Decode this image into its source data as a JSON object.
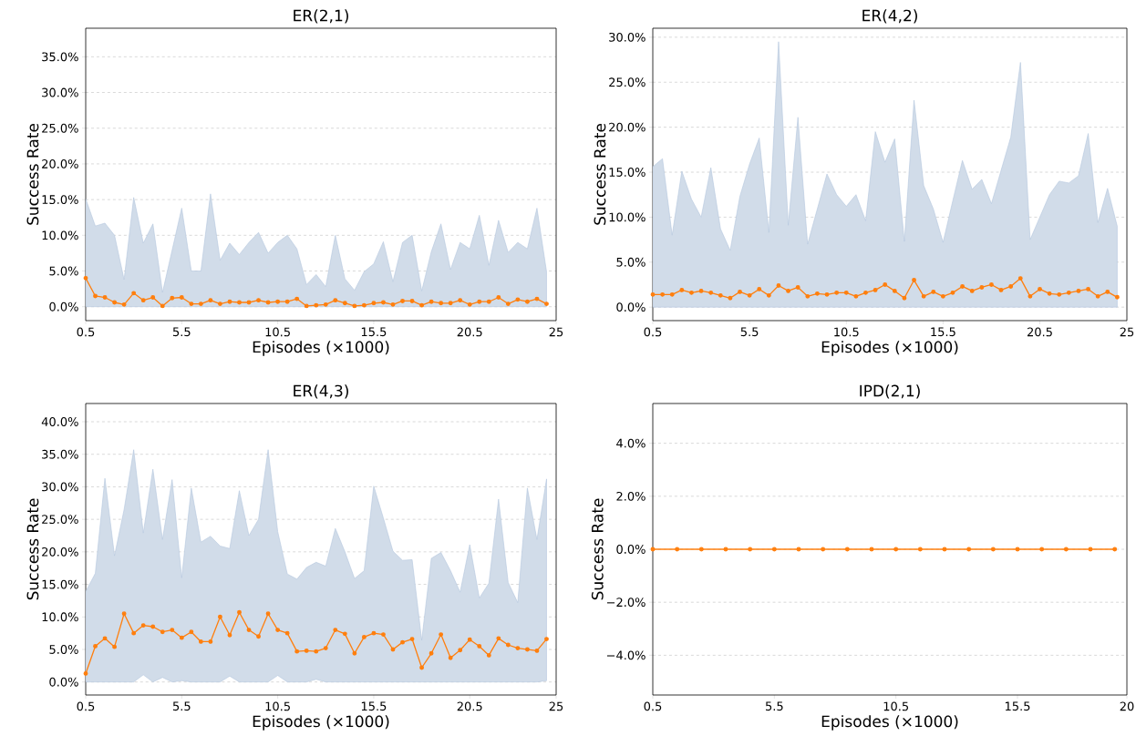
{
  "chart_data": [
    {
      "type": "line",
      "title": "ER(2,1)",
      "xlabel": "Episodes (×1000)",
      "ylabel": "Success Rate",
      "grid": "y",
      "marker": "circle",
      "line_style": "solid",
      "xlim": [
        0.5,
        25
      ],
      "xticks": [
        0.5,
        5.5,
        10.5,
        15.5,
        20.5,
        25
      ],
      "ylim": [
        -1.95,
        39
      ],
      "yticks": [
        {
          "value": 0,
          "label": "0.0%"
        },
        {
          "value": 5,
          "label": "5.0%"
        },
        {
          "value": 10,
          "label": "10.0%"
        },
        {
          "value": 15,
          "label": "15.0%"
        },
        {
          "value": 20,
          "label": "20.0%"
        },
        {
          "value": 25,
          "label": "25.0%"
        },
        {
          "value": 30,
          "label": "30.0%"
        },
        {
          "value": 35,
          "label": "35.0%"
        }
      ],
      "x": [
        0.5,
        1,
        1.5,
        2,
        2.5,
        3,
        3.5,
        4,
        4.5,
        5,
        5.5,
        6,
        6.5,
        7,
        7.5,
        8,
        8.5,
        9,
        9.5,
        10,
        10.5,
        11,
        11.5,
        12,
        12.5,
        13,
        13.5,
        14,
        14.5,
        15,
        15.5,
        16,
        16.5,
        17,
        17.5,
        18,
        18.5,
        19,
        19.5,
        20,
        20.5,
        21,
        21.5,
        22,
        22.5,
        23,
        23.5,
        24,
        24.5
      ],
      "series": [
        {
          "color": "#ff7f0e",
          "values": [
            4.0,
            1.5,
            1.3,
            0.6,
            0.3,
            1.9,
            0.9,
            1.3,
            0.1,
            1.2,
            1.3,
            0.4,
            0.4,
            0.9,
            0.4,
            0.7,
            0.6,
            0.6,
            0.9,
            0.6,
            0.7,
            0.7,
            1.1,
            0.1,
            0.2,
            0.3,
            0.9,
            0.5,
            0.1,
            0.2,
            0.5,
            0.6,
            0.3,
            0.8,
            0.8,
            0.2,
            0.7,
            0.5,
            0.5,
            0.9,
            0.3,
            0.7,
            0.7,
            1.3,
            0.4,
            1.0,
            0.7,
            1.1,
            0.4
          ],
          "lower": [
            0,
            0,
            0,
            0,
            0,
            0,
            0,
            0,
            0,
            0,
            0,
            0,
            0,
            0,
            0,
            0,
            0,
            0,
            0,
            0,
            0,
            0,
            0,
            0,
            0,
            0,
            0,
            0,
            0,
            0,
            0,
            0,
            0,
            0,
            0,
            0,
            0,
            0,
            0,
            0,
            0,
            0,
            0,
            0,
            0,
            0,
            0,
            0,
            0
          ],
          "upper": [
            15.1,
            11.3,
            11.7,
            10.0,
            3.8,
            15.3,
            8.9,
            11.6,
            2.0,
            7.9,
            13.8,
            5.0,
            5.0,
            15.8,
            6.5,
            8.9,
            7.3,
            9.0,
            10.4,
            7.5,
            9.0,
            10.0,
            8.1,
            3.1,
            4.5,
            2.8,
            10.0,
            3.9,
            2.3,
            4.9,
            6.0,
            9.1,
            3.5,
            9.0,
            10.0,
            2.2,
            7.7,
            11.6,
            5.2,
            9.0,
            8.1,
            12.8,
            5.8,
            12.1,
            7.6,
            9.0,
            8.1,
            13.8,
            4.9
          ]
        }
      ]
    },
    {
      "type": "line",
      "title": "ER(4,2)",
      "xlabel": "Episodes (×1000)",
      "ylabel": "Success Rate",
      "grid": "y",
      "marker": "circle",
      "line_style": "solid",
      "xlim": [
        0.5,
        25
      ],
      "xticks": [
        0.5,
        5.5,
        10.5,
        15.5,
        20.5,
        25
      ],
      "ylim": [
        -1.5,
        31
      ],
      "yticks": [
        {
          "value": 0,
          "label": "0.0%"
        },
        {
          "value": 5,
          "label": "5.0%"
        },
        {
          "value": 10,
          "label": "10.0%"
        },
        {
          "value": 15,
          "label": "15.0%"
        },
        {
          "value": 20,
          "label": "20.0%"
        },
        {
          "value": 25,
          "label": "25.0%"
        },
        {
          "value": 30,
          "label": "30.0%"
        }
      ],
      "x": [
        0.5,
        1,
        1.5,
        2,
        2.5,
        3,
        3.5,
        4,
        4.5,
        5,
        5.5,
        6,
        6.5,
        7,
        7.5,
        8,
        8.5,
        9,
        9.5,
        10,
        10.5,
        11,
        11.5,
        12,
        12.5,
        13,
        13.5,
        14,
        14.5,
        15,
        15.5,
        16,
        16.5,
        17,
        17.5,
        18,
        18.5,
        19,
        19.5,
        20,
        20.5,
        21,
        21.5,
        22,
        22.5,
        23,
        23.5,
        24,
        24.5
      ],
      "series": [
        {
          "color": "#ff7f0e",
          "values": [
            1.4,
            1.4,
            1.4,
            1.9,
            1.6,
            1.8,
            1.6,
            1.3,
            1.0,
            1.7,
            1.3,
            2.0,
            1.3,
            2.4,
            1.8,
            2.2,
            1.2,
            1.5,
            1.4,
            1.6,
            1.6,
            1.2,
            1.6,
            1.9,
            2.5,
            1.8,
            1.0,
            3.0,
            1.2,
            1.7,
            1.2,
            1.6,
            2.3,
            1.8,
            2.2,
            2.5,
            1.9,
            2.3,
            3.2,
            1.2,
            2.0,
            1.5,
            1.4,
            1.6,
            1.8,
            2.0,
            1.2,
            1.7,
            1.1
          ],
          "lower": [
            0,
            0,
            0,
            0,
            0,
            0,
            0,
            0,
            0,
            0,
            0,
            0,
            0,
            0,
            0,
            0,
            0,
            0,
            0,
            0,
            0,
            0,
            0,
            0,
            0,
            0,
            0,
            0,
            0,
            0,
            0,
            0,
            0,
            0,
            0,
            0,
            0,
            0,
            0,
            0,
            0,
            0,
            0,
            0,
            0,
            0,
            0,
            0,
            0
          ],
          "upper": [
            15.6,
            16.5,
            8.0,
            15.1,
            12.0,
            10.0,
            15.5,
            8.7,
            6.3,
            12.3,
            15.9,
            18.8,
            8.3,
            29.5,
            9.1,
            21.1,
            7.0,
            10.9,
            14.8,
            12.5,
            11.2,
            12.5,
            9.6,
            19.5,
            16.1,
            18.7,
            7.3,
            23.0,
            13.5,
            10.9,
            7.2,
            11.8,
            16.3,
            13.1,
            14.2,
            11.5,
            15.2,
            18.9,
            27.2,
            7.5,
            10.0,
            12.5,
            14.0,
            13.8,
            14.6,
            19.3,
            9.4,
            13.2,
            9.0
          ]
        }
      ]
    },
    {
      "type": "line",
      "title": "ER(4,3)",
      "xlabel": "Episodes (×1000)",
      "ylabel": "Success Rate",
      "grid": "y",
      "marker": "circle",
      "line_style": "solid",
      "xlim": [
        0.5,
        25
      ],
      "xticks": [
        0.5,
        5.5,
        10.5,
        15.5,
        20.5,
        25
      ],
      "ylim": [
        -2,
        42.8
      ],
      "yticks": [
        {
          "value": 0,
          "label": "0.0%"
        },
        {
          "value": 5,
          "label": "5.0%"
        },
        {
          "value": 10,
          "label": "10.0%"
        },
        {
          "value": 15,
          "label": "15.0%"
        },
        {
          "value": 20,
          "label": "20.0%"
        },
        {
          "value": 25,
          "label": "25.0%"
        },
        {
          "value": 30,
          "label": "30.0%"
        },
        {
          "value": 35,
          "label": "35.0%"
        },
        {
          "value": 40,
          "label": "40.0%"
        }
      ],
      "x": [
        0.5,
        1,
        1.5,
        2,
        2.5,
        3,
        3.5,
        4,
        4.5,
        5,
        5.5,
        6,
        6.5,
        7,
        7.5,
        8,
        8.5,
        9,
        9.5,
        10,
        10.5,
        11,
        11.5,
        12,
        12.5,
        13,
        13.5,
        14,
        14.5,
        15,
        15.5,
        16,
        16.5,
        17,
        17.5,
        18,
        18.5,
        19,
        19.5,
        20,
        20.5,
        21,
        21.5,
        22,
        22.5,
        23,
        23.5,
        24,
        24.5
      ],
      "series": [
        {
          "color": "#ff7f0e",
          "values": [
            1.3,
            5.5,
            6.7,
            5.4,
            10.5,
            7.5,
            8.7,
            8.5,
            7.7,
            8.0,
            6.8,
            7.7,
            6.2,
            6.2,
            10.0,
            7.2,
            10.7,
            8.0,
            7.0,
            10.5,
            8.0,
            7.5,
            4.7,
            4.8,
            4.7,
            5.2,
            8.0,
            7.4,
            4.4,
            6.9,
            7.5,
            7.3,
            5.0,
            6.1,
            6.6,
            2.2,
            4.4,
            7.3,
            3.7,
            4.9,
            6.5,
            5.5,
            4.1,
            6.7,
            5.7,
            5.2,
            5.0,
            4.8,
            6.6
          ],
          "lower": [
            0,
            0,
            0,
            0,
            0,
            0,
            1.1,
            0,
            0.7,
            0,
            0.2,
            0,
            0,
            0,
            0,
            0.9,
            0,
            0,
            0,
            0,
            1.0,
            0,
            0,
            0,
            0.4,
            0,
            0,
            0,
            0,
            0,
            0,
            0,
            0,
            0,
            0,
            0,
            0,
            0,
            0,
            0,
            0,
            0,
            0,
            0,
            0,
            0,
            0,
            0,
            0.2
          ],
          "upper": [
            13.9,
            16.7,
            31.3,
            19.4,
            26.5,
            35.7,
            22.9,
            32.7,
            21.9,
            31.1,
            16.0,
            29.8,
            21.5,
            22.4,
            20.9,
            20.5,
            29.4,
            22.5,
            25.0,
            35.7,
            23.1,
            16.6,
            15.8,
            17.6,
            18.4,
            17.8,
            23.6,
            20.0,
            15.9,
            17.1,
            30.1,
            25.2,
            20.1,
            18.7,
            18.8,
            6.4,
            19.0,
            19.9,
            17.1,
            13.8,
            21.1,
            12.9,
            15.2,
            28.1,
            15.3,
            12.2,
            29.8,
            21.9,
            31.2
          ]
        }
      ]
    },
    {
      "type": "line",
      "title": "IPD(2,1)",
      "xlabel": "Episodes (×1000)",
      "ylabel": "Success Rate",
      "grid": "y",
      "marker": "circle",
      "line_style": "solid",
      "xlim": [
        0.5,
        20
      ],
      "xticks": [
        0.5,
        5.5,
        10.5,
        15.5,
        20
      ],
      "ylim": [
        -5.5,
        5.5
      ],
      "yticks": [
        {
          "value": -4,
          "label": "−4.0%"
        },
        {
          "value": -2,
          "label": "−2.0%"
        },
        {
          "value": 0,
          "label": "0.0%"
        },
        {
          "value": 2,
          "label": "2.0%"
        },
        {
          "value": 4,
          "label": "4.0%"
        }
      ],
      "x": [
        0.5,
        1.5,
        2.5,
        3.5,
        4.5,
        5.5,
        6.5,
        7.5,
        8.5,
        9.5,
        10.5,
        11.5,
        12.5,
        13.5,
        14.5,
        15.5,
        16.5,
        17.5,
        18.5,
        19.5
      ],
      "series": [
        {
          "color": "#ff7f0e",
          "values": [
            0,
            0,
            0,
            0,
            0,
            0,
            0,
            0,
            0,
            0,
            0,
            0,
            0,
            0,
            0,
            0,
            0,
            0,
            0,
            0
          ]
        }
      ]
    }
  ]
}
